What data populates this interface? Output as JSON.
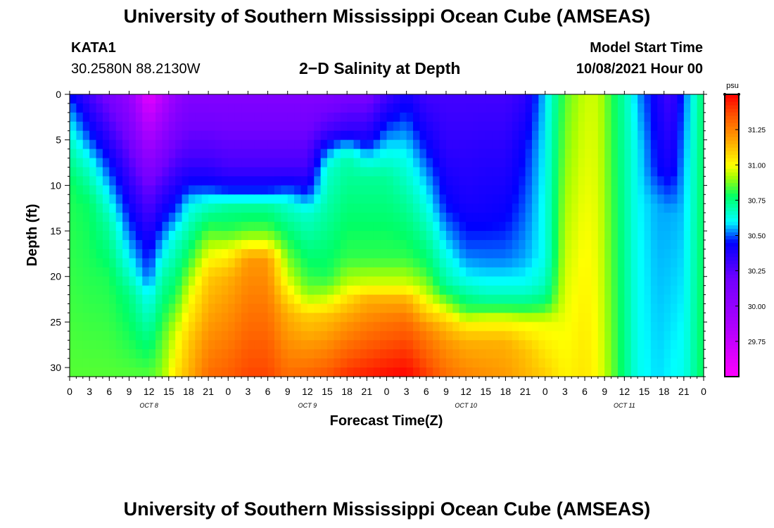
{
  "page": {
    "title_top": "University of Southern Mississippi Ocean Cube (AMSEAS)",
    "title_bottom": "University of Southern Mississippi Ocean Cube (AMSEAS)",
    "station": "KATA1",
    "coords": "30.2580N  88.2130W",
    "plot_title": "2−D Salinity at Depth",
    "start_label": "Model Start Time",
    "start_value": "10/08/2021 Hour 00"
  },
  "chart_data": {
    "type": "heatmap",
    "title": "2-D Salinity at Depth",
    "xlabel": "Forecast Time(Z)",
    "ylabel": "Depth (ft)",
    "x_tick_labels": [
      "0",
      "3",
      "6",
      "9",
      "12",
      "15",
      "18",
      "21",
      "0",
      "3",
      "6",
      "9",
      "12",
      "15",
      "18",
      "21",
      "0",
      "3",
      "6",
      "9",
      "12",
      "15",
      "18",
      "21",
      "0",
      "3",
      "6",
      "9",
      "12",
      "15",
      "18",
      "21",
      "0"
    ],
    "day_labels": [
      {
        "label": "OCT 8",
        "hour": 12
      },
      {
        "label": "OCT 9",
        "hour": 36
      },
      {
        "label": "OCT 10",
        "hour": 60
      },
      {
        "label": "OCT 11",
        "hour": 84
      }
    ],
    "x_range_hours": [
      0,
      96
    ],
    "y_range_ft": [
      0,
      31
    ],
    "y_ticks": [
      0,
      5,
      10,
      15,
      20,
      25,
      30
    ],
    "colorbar": {
      "unit": "psu",
      "range": [
        29.5,
        31.5
      ],
      "ticks": [
        "29.75",
        "30.00",
        "30.25",
        "30.50",
        "30.75",
        "31.00",
        "31.25"
      ],
      "tick_values": [
        29.75,
        30.0,
        30.25,
        30.5,
        30.75,
        31.0,
        31.25
      ],
      "color_stops": [
        {
          "v": 29.5,
          "c": "#ff00ff"
        },
        {
          "v": 29.85,
          "c": "#b000ff"
        },
        {
          "v": 30.2,
          "c": "#7000ff"
        },
        {
          "v": 30.45,
          "c": "#0000ff"
        },
        {
          "v": 30.6,
          "c": "#00ffff"
        },
        {
          "v": 30.78,
          "c": "#00ff66"
        },
        {
          "v": 30.92,
          "c": "#aaff00"
        },
        {
          "v": 31.0,
          "c": "#ffff00"
        },
        {
          "v": 31.2,
          "c": "#ff9900"
        },
        {
          "v": 31.35,
          "c": "#ff5500"
        },
        {
          "v": 31.5,
          "c": "#ff0000"
        }
      ]
    },
    "profiles": [
      {
        "hour": 0,
        "levels": [
          [
            0,
            30.45
          ],
          [
            2,
            30.55
          ],
          [
            6,
            30.7
          ],
          [
            10,
            30.8
          ],
          [
            31,
            30.85
          ]
        ]
      },
      {
        "hour": 3,
        "levels": [
          [
            0,
            30.3
          ],
          [
            5,
            30.5
          ],
          [
            8,
            30.65
          ],
          [
            12,
            30.78
          ],
          [
            31,
            30.85
          ]
        ]
      },
      {
        "hour": 6,
        "levels": [
          [
            0,
            30.15
          ],
          [
            6,
            30.4
          ],
          [
            10,
            30.55
          ],
          [
            14,
            30.7
          ],
          [
            20,
            30.8
          ],
          [
            31,
            30.85
          ]
        ]
      },
      {
        "hour": 9,
        "levels": [
          [
            0,
            30.0
          ],
          [
            8,
            30.3
          ],
          [
            14,
            30.48
          ],
          [
            18,
            30.6
          ],
          [
            22,
            30.75
          ],
          [
            31,
            30.85
          ]
        ]
      },
      {
        "hour": 12,
        "levels": [
          [
            0,
            29.6
          ],
          [
            10,
            30.2
          ],
          [
            16,
            30.4
          ],
          [
            20,
            30.5
          ],
          [
            22,
            30.6
          ],
          [
            27,
            30.75
          ],
          [
            31,
            30.85
          ]
        ]
      },
      {
        "hour": 14,
        "levels": [
          [
            0,
            29.8
          ],
          [
            10,
            30.3
          ],
          [
            15,
            30.5
          ],
          [
            20,
            30.7
          ],
          [
            27,
            30.85
          ],
          [
            31,
            30.9
          ]
        ]
      },
      {
        "hour": 16,
        "levels": [
          [
            0,
            30.0
          ],
          [
            8,
            30.3
          ],
          [
            12,
            30.45
          ],
          [
            16,
            30.65
          ],
          [
            22,
            30.8
          ],
          [
            26,
            30.95
          ],
          [
            31,
            31.05
          ]
        ]
      },
      {
        "hour": 18,
        "levels": [
          [
            0,
            30.1
          ],
          [
            7,
            30.3
          ],
          [
            10,
            30.45
          ],
          [
            12,
            30.6
          ],
          [
            18,
            30.8
          ],
          [
            22,
            30.97
          ],
          [
            27,
            31.1
          ],
          [
            31,
            31.15
          ]
        ]
      },
      {
        "hour": 21,
        "levels": [
          [
            0,
            30.1
          ],
          [
            7,
            30.3
          ],
          [
            10,
            30.45
          ],
          [
            12,
            30.65
          ],
          [
            14,
            30.78
          ],
          [
            17,
            30.95
          ],
          [
            20,
            31.1
          ],
          [
            31,
            31.3
          ]
        ]
      },
      {
        "hour": 24,
        "levels": [
          [
            0,
            30.1
          ],
          [
            8,
            30.3
          ],
          [
            11,
            30.5
          ],
          [
            12,
            30.7
          ],
          [
            15,
            30.82
          ],
          [
            17,
            30.98
          ],
          [
            20,
            31.15
          ],
          [
            31,
            31.33
          ]
        ]
      },
      {
        "hour": 27,
        "levels": [
          [
            0,
            30.1
          ],
          [
            8,
            30.3
          ],
          [
            11,
            30.5
          ],
          [
            12,
            30.7
          ],
          [
            15,
            30.85
          ],
          [
            16.5,
            31.0
          ],
          [
            18,
            31.2
          ],
          [
            31,
            31.38
          ]
        ]
      },
      {
        "hour": 30,
        "levels": [
          [
            0,
            30.1
          ],
          [
            8,
            30.3
          ],
          [
            11,
            30.5
          ],
          [
            12,
            30.7
          ],
          [
            15,
            30.85
          ],
          [
            16.5,
            31.0
          ],
          [
            18,
            31.2
          ],
          [
            31,
            31.38
          ]
        ]
      },
      {
        "hour": 33,
        "levels": [
          [
            0,
            30.1
          ],
          [
            8,
            30.3
          ],
          [
            10,
            30.45
          ],
          [
            12,
            30.65
          ],
          [
            16,
            30.8
          ],
          [
            20,
            30.95
          ],
          [
            24,
            31.15
          ],
          [
            31,
            31.3
          ]
        ]
      },
      {
        "hour": 36,
        "levels": [
          [
            0,
            30.1
          ],
          [
            8,
            30.3
          ],
          [
            10.5,
            30.45
          ],
          [
            13,
            30.65
          ],
          [
            20,
            30.82
          ],
          [
            22,
            30.9
          ],
          [
            24.5,
            31.1
          ],
          [
            31,
            31.32
          ]
        ]
      },
      {
        "hour": 39,
        "levels": [
          [
            0,
            30.1
          ],
          [
            4,
            30.3
          ],
          [
            6,
            30.5
          ],
          [
            8,
            30.65
          ],
          [
            20,
            30.8
          ],
          [
            22,
            30.92
          ],
          [
            24.5,
            31.12
          ],
          [
            31,
            31.35
          ]
        ]
      },
      {
        "hour": 42,
        "levels": [
          [
            0,
            30.15
          ],
          [
            4,
            30.35
          ],
          [
            5.5,
            30.55
          ],
          [
            7,
            30.7
          ],
          [
            18,
            30.82
          ],
          [
            21,
            30.95
          ],
          [
            23,
            31.1
          ],
          [
            25,
            31.2
          ],
          [
            31,
            31.42
          ]
        ]
      },
      {
        "hour": 45,
        "levels": [
          [
            0,
            30.15
          ],
          [
            5,
            30.4
          ],
          [
            7,
            30.6
          ],
          [
            9,
            30.72
          ],
          [
            18,
            30.82
          ],
          [
            21,
            30.97
          ],
          [
            22.5,
            31.15
          ],
          [
            25,
            31.25
          ],
          [
            31,
            31.45
          ]
        ]
      },
      {
        "hour": 48,
        "levels": [
          [
            0,
            30.3
          ],
          [
            3,
            30.45
          ],
          [
            6,
            30.6
          ],
          [
            9,
            30.72
          ],
          [
            18,
            30.82
          ],
          [
            21,
            30.97
          ],
          [
            22.5,
            31.15
          ],
          [
            25,
            31.28
          ],
          [
            31,
            31.48
          ]
        ]
      },
      {
        "hour": 51,
        "levels": [
          [
            0,
            30.4
          ],
          [
            3,
            30.5
          ],
          [
            7,
            30.62
          ],
          [
            12,
            30.72
          ],
          [
            18,
            30.82
          ],
          [
            21,
            30.97
          ],
          [
            22.5,
            31.15
          ],
          [
            25,
            31.3
          ],
          [
            31,
            31.5
          ]
        ]
      },
      {
        "hour": 54,
        "levels": [
          [
            0,
            30.3
          ],
          [
            4,
            30.4
          ],
          [
            9,
            30.55
          ],
          [
            15,
            30.7
          ],
          [
            19,
            30.8
          ],
          [
            22,
            30.95
          ],
          [
            24,
            31.1
          ],
          [
            26,
            31.25
          ],
          [
            31,
            31.4
          ]
        ]
      },
      {
        "hour": 57,
        "levels": [
          [
            0,
            30.3
          ],
          [
            6,
            30.35
          ],
          [
            12,
            30.45
          ],
          [
            17,
            30.6
          ],
          [
            21,
            30.72
          ],
          [
            23,
            30.9
          ],
          [
            25,
            31.1
          ],
          [
            27,
            31.2
          ],
          [
            31,
            31.3
          ]
        ]
      },
      {
        "hour": 60,
        "levels": [
          [
            0,
            30.3
          ],
          [
            6,
            30.35
          ],
          [
            12,
            30.4
          ],
          [
            17,
            30.5
          ],
          [
            20,
            30.6
          ],
          [
            22,
            30.72
          ],
          [
            24,
            30.85
          ],
          [
            25,
            31.0
          ],
          [
            27,
            31.15
          ],
          [
            31,
            31.25
          ]
        ]
      },
      {
        "hour": 63,
        "levels": [
          [
            0,
            30.3
          ],
          [
            8,
            30.38
          ],
          [
            13,
            30.42
          ],
          [
            18,
            30.52
          ],
          [
            21,
            30.62
          ],
          [
            23,
            30.75
          ],
          [
            24.5,
            30.95
          ],
          [
            27,
            31.15
          ],
          [
            31,
            31.22
          ]
        ]
      },
      {
        "hour": 66,
        "levels": [
          [
            0,
            30.3
          ],
          [
            10,
            30.4
          ],
          [
            14,
            30.45
          ],
          [
            18,
            30.52
          ],
          [
            21,
            30.62
          ],
          [
            23,
            30.75
          ],
          [
            24.5,
            30.95
          ],
          [
            27,
            31.15
          ],
          [
            31,
            31.2
          ]
        ]
      },
      {
        "hour": 69,
        "levels": [
          [
            0,
            30.35
          ],
          [
            6,
            30.45
          ],
          [
            12,
            30.5
          ],
          [
            18,
            30.55
          ],
          [
            21,
            30.62
          ],
          [
            23,
            30.75
          ],
          [
            25,
            30.98
          ],
          [
            28,
            31.12
          ],
          [
            31,
            31.15
          ]
        ]
      },
      {
        "hour": 72,
        "levels": [
          [
            0,
            30.58
          ],
          [
            5,
            30.6
          ],
          [
            12,
            30.62
          ],
          [
            18,
            30.62
          ],
          [
            21,
            30.68
          ],
          [
            23,
            30.78
          ],
          [
            25,
            30.98
          ],
          [
            31,
            31.1
          ]
        ]
      },
      {
        "hour": 75,
        "levels": [
          [
            0,
            30.85
          ],
          [
            31,
            31.02
          ]
        ]
      },
      {
        "hour": 78,
        "levels": [
          [
            0,
            30.95
          ],
          [
            31,
            31.05
          ]
        ]
      },
      {
        "hour": 80,
        "levels": [
          [
            0,
            30.95
          ],
          [
            31,
            31.0
          ]
        ]
      },
      {
        "hour": 82,
        "levels": [
          [
            0,
            30.82
          ],
          [
            31,
            30.88
          ]
        ]
      },
      {
        "hour": 84,
        "levels": [
          [
            0,
            30.7
          ],
          [
            31,
            30.75
          ]
        ]
      },
      {
        "hour": 86,
        "levels": [
          [
            0,
            30.55
          ],
          [
            6,
            30.6
          ],
          [
            31,
            30.62
          ]
        ]
      },
      {
        "hour": 89,
        "levels": [
          [
            0,
            30.4
          ],
          [
            8,
            30.45
          ],
          [
            12,
            30.55
          ],
          [
            31,
            30.58
          ]
        ]
      },
      {
        "hour": 91,
        "levels": [
          [
            0,
            30.3
          ],
          [
            8,
            30.4
          ],
          [
            13,
            30.55
          ],
          [
            31,
            30.6
          ]
        ]
      },
      {
        "hour": 93,
        "levels": [
          [
            0,
            30.5
          ],
          [
            8,
            30.55
          ],
          [
            31,
            30.62
          ]
        ]
      },
      {
        "hour": 96,
        "levels": [
          [
            0,
            30.78
          ],
          [
            31,
            30.8
          ]
        ]
      }
    ]
  }
}
